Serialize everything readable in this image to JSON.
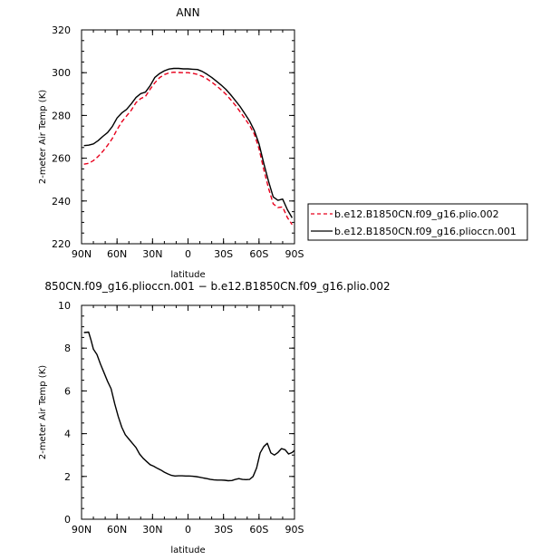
{
  "chart_data": [
    {
      "type": "line",
      "title": "ANN",
      "xlabel": "latitude",
      "ylabel": "2-meter Air Temp (K)",
      "xlim": [
        90,
        -90
      ],
      "ylim": [
        220,
        320
      ],
      "x_ticks": [
        90,
        60,
        30,
        0,
        -30,
        -60,
        -90
      ],
      "x_tick_labels": [
        "90N",
        "60N",
        "30N",
        "0",
        "30S",
        "60S",
        "90S"
      ],
      "y_ticks": [
        220,
        240,
        260,
        280,
        300,
        320
      ],
      "y_tick_labels": [
        "220",
        "240",
        "260",
        "280",
        "300",
        "320"
      ],
      "legend_position": "right",
      "series": [
        {
          "name": "b.e12.B1850CN.f09_g16.plio.002",
          "color": "#e8001c",
          "dash": "dashed",
          "x": [
            88,
            84,
            80,
            76,
            72,
            68,
            64,
            60,
            56,
            52,
            48,
            44,
            40,
            36,
            32,
            28,
            24,
            20,
            16,
            12,
            8,
            4,
            0,
            -4,
            -8,
            -12,
            -16,
            -20,
            -24,
            -28,
            -32,
            -36,
            -40,
            -44,
            -48,
            -52,
            -56,
            -60,
            -64,
            -68,
            -72,
            -76,
            -80,
            -84,
            -88
          ],
          "y": [
            257.2,
            257.6,
            258.9,
            260.8,
            263.2,
            266.0,
            269.2,
            273.4,
            277.0,
            279.7,
            282.4,
            286.0,
            287.9,
            288.9,
            292.3,
            295.3,
            297.7,
            299.1,
            299.9,
            300.2,
            300.1,
            300.0,
            300.0,
            299.7,
            299.2,
            298.3,
            297.1,
            295.6,
            293.9,
            292.0,
            289.9,
            287.4,
            284.8,
            281.8,
            278.6,
            275.4,
            271.3,
            264.5,
            254.7,
            246.0,
            238.7,
            236.9,
            237.2,
            232.2,
            229.0
          ]
        },
        {
          "name": "b.e12.B1850CN.f09_g16.plioccn.001",
          "color": "#000000",
          "dash": "solid",
          "x": [
            88,
            84,
            80,
            76,
            72,
            68,
            64,
            60,
            56,
            52,
            48,
            44,
            40,
            36,
            32,
            28,
            24,
            20,
            16,
            12,
            8,
            4,
            0,
            -4,
            -8,
            -12,
            -16,
            -20,
            -24,
            -28,
            -32,
            -36,
            -40,
            -44,
            -48,
            -52,
            -56,
            -60,
            -64,
            -68,
            -72,
            -76,
            -80,
            -84,
            -88
          ],
          "y": [
            265.9,
            266.1,
            266.7,
            268.2,
            270.2,
            272.0,
            274.8,
            278.8,
            281.2,
            282.8,
            285.4,
            288.4,
            290.2,
            290.9,
            293.9,
            297.8,
            299.6,
            300.9,
            301.7,
            302.0,
            302.0,
            301.8,
            301.8,
            301.6,
            301.5,
            300.6,
            299.3,
            297.8,
            296.0,
            294.2,
            292.2,
            289.7,
            287.0,
            284.2,
            280.8,
            277.4,
            273.0,
            266.8,
            257.6,
            249.3,
            241.9,
            240.3,
            240.9,
            235.9,
            232.1
          ]
        }
      ]
    },
    {
      "type": "line",
      "title": "850CN.f09_g16.plioccn.001 − b.e12.B1850CN.f09_g16.plio.002",
      "xlabel": "latitude",
      "ylabel": "2-meter Air Temp (K)",
      "xlim": [
        90,
        -90
      ],
      "ylim": [
        0,
        10
      ],
      "x_ticks": [
        90,
        60,
        30,
        0,
        -30,
        -60,
        -90
      ],
      "x_tick_labels": [
        "90N",
        "60N",
        "30N",
        "0",
        "30S",
        "60S",
        "90S"
      ],
      "y_ticks": [
        0,
        2,
        4,
        6,
        8,
        10
      ],
      "y_tick_labels": [
        "0",
        "2",
        "4",
        "6",
        "8",
        "10"
      ],
      "series": [
        {
          "color": "#000000",
          "dash": "solid",
          "x": [
            88,
            84,
            82,
            80,
            77,
            74,
            71,
            68,
            65,
            62,
            59,
            56,
            53,
            50,
            47,
            44,
            41,
            38,
            35,
            32,
            29,
            26,
            23,
            20,
            17,
            14,
            11,
            8,
            5,
            2,
            -1,
            -4,
            -7,
            -10,
            -13,
            -16,
            -19,
            -22,
            -25,
            -28,
            -31,
            -34,
            -37,
            -40,
            -43,
            -46,
            -49,
            -52,
            -55,
            -58,
            -61,
            -64,
            -67,
            -70,
            -73,
            -76,
            -79,
            -82,
            -85,
            -88,
            -90
          ],
          "y": [
            8.73,
            8.75,
            8.38,
            7.95,
            7.7,
            7.25,
            6.85,
            6.45,
            6.1,
            5.4,
            4.8,
            4.3,
            3.95,
            3.75,
            3.55,
            3.35,
            3.05,
            2.85,
            2.7,
            2.55,
            2.48,
            2.38,
            2.3,
            2.2,
            2.12,
            2.05,
            2.02,
            2.03,
            2.03,
            2.02,
            2.02,
            2.01,
            1.99,
            1.96,
            1.93,
            1.9,
            1.86,
            1.84,
            1.83,
            1.83,
            1.82,
            1.8,
            1.81,
            1.86,
            1.9,
            1.86,
            1.85,
            1.86,
            2.0,
            2.4,
            3.1,
            3.4,
            3.55,
            3.1,
            3.0,
            3.12,
            3.3,
            3.25,
            3.05,
            3.12,
            3.22
          ]
        }
      ]
    }
  ]
}
